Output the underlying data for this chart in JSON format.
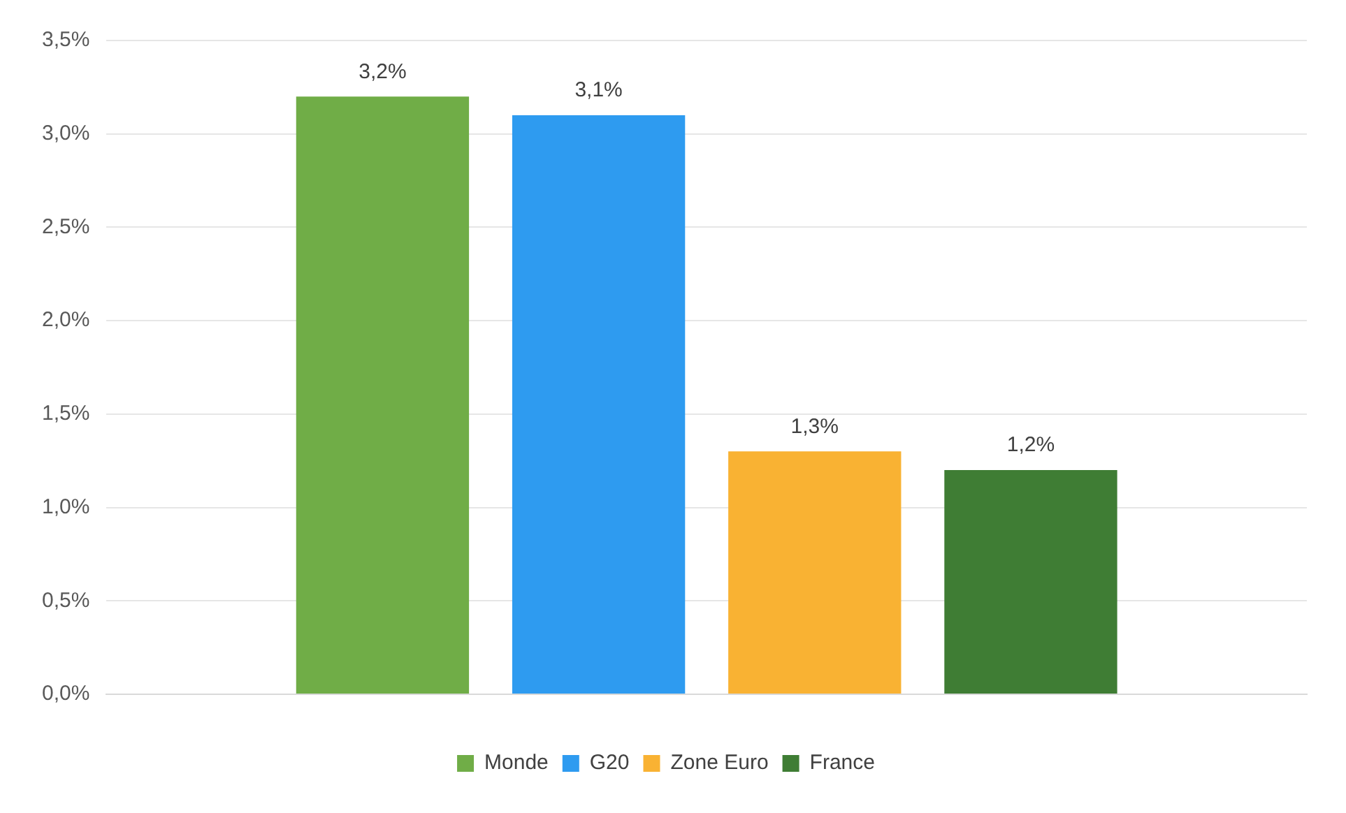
{
  "chart_data": {
    "type": "bar",
    "categories": [
      null
    ],
    "series": [
      {
        "name": "Monde",
        "color": "#70ad47",
        "values": [
          3.2
        ],
        "value_labels": [
          "3,2%"
        ]
      },
      {
        "name": "G20",
        "color": "#2e9bf0",
        "values": [
          3.1
        ],
        "value_labels": [
          "3,1%"
        ]
      },
      {
        "name": "Zone Euro",
        "color": "#f9b233",
        "values": [
          1.3
        ],
        "value_labels": [
          "1,3%"
        ]
      },
      {
        "name": "France",
        "color": "#3f7d34",
        "values": [
          1.2
        ],
        "value_labels": [
          "1,2%"
        ]
      }
    ],
    "ylim": [
      0,
      3.5
    ],
    "yticks": [
      {
        "value": 0,
        "label": "0,0%"
      },
      {
        "value": 0.5,
        "label": "0,5%"
      },
      {
        "value": 1,
        "label": "1,0%"
      },
      {
        "value": 1.5,
        "label": "1,5%"
      },
      {
        "value": 2,
        "label": "2,0%"
      },
      {
        "value": 2.5,
        "label": "2,5%"
      },
      {
        "value": 3,
        "label": "3,0%"
      },
      {
        "value": 3.5,
        "label": "3,5%"
      }
    ],
    "grid": "y",
    "legend": "bottom"
  }
}
